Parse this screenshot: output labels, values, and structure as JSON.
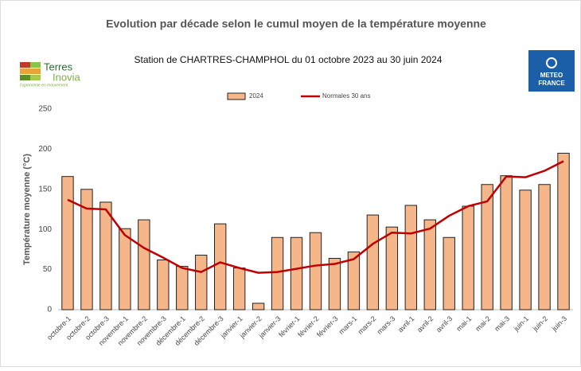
{
  "chart_data": {
    "type": "bar",
    "title": "Evolution par décade selon le cumul moyen de la température moyenne",
    "subtitle": "Station de CHARTRES-CHAMPHOL du 01 octobre 2023 au 30 juin 2024",
    "y_label": "Température moyenne (°C)",
    "categories": [
      "octobre-1",
      "octobre-2",
      "octobre-3",
      "novembre-1",
      "novembre-2",
      "novembre-3",
      "décembre-1",
      "décembre-2",
      "décembre-3",
      "janvier-1",
      "janvier-2",
      "janvier-3",
      "février-1",
      "février-2",
      "février-3",
      "mars-1",
      "mars-2",
      "mars-3",
      "avril-1",
      "avril-2",
      "avril-3",
      "mai-1",
      "mai-2",
      "mai-3",
      "juin-1",
      "juin-2",
      "juin-3"
    ],
    "series": [
      {
        "name": "2024",
        "type": "bar",
        "color": "#f5b68a",
        "values": [
          166,
          150,
          134,
          101,
          112,
          62,
          54,
          68,
          107,
          52,
          8,
          90,
          90,
          96,
          64,
          72,
          118,
          103,
          130,
          112,
          90,
          129,
          156,
          167,
          149,
          156,
          195
        ]
      },
      {
        "name": "Normales 30 ans",
        "type": "line",
        "color": "#c00000",
        "values": [
          137,
          126,
          125,
          93,
          77,
          65,
          52,
          47,
          59,
          52,
          46,
          47,
          51,
          55,
          57,
          63,
          82,
          96,
          95,
          101,
          117,
          129,
          135,
          166,
          165,
          173,
          185
        ]
      }
    ],
    "ylim": [
      0,
      250
    ],
    "yticks": [
      0,
      50,
      100,
      150,
      200,
      250
    ],
    "grid": false,
    "legend": "top"
  },
  "logos": {
    "left_line1": "Terres",
    "left_line2": "Inovia",
    "left_tagline": "l'agronomie en mouvement",
    "right_line1": "METEO",
    "right_line2": "FRANCE"
  }
}
